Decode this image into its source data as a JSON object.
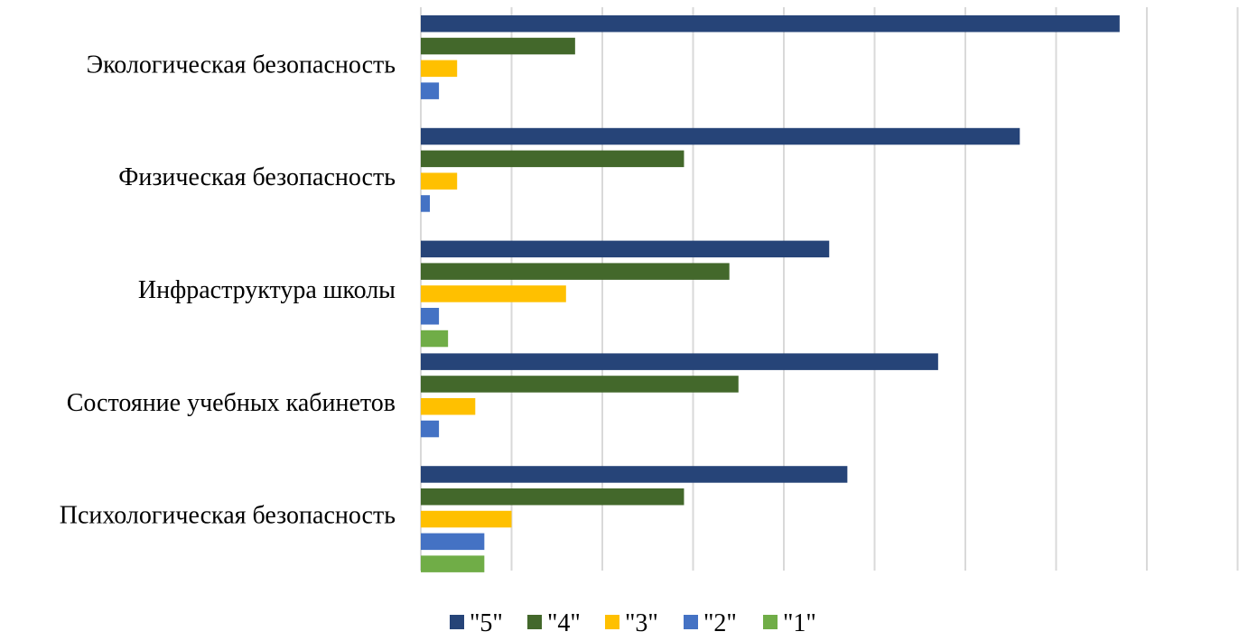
{
  "chart_data": {
    "type": "bar",
    "orientation": "horizontal",
    "categories": [
      "Экологическая безопасность",
      "Физическая безопасность",
      "Инфраструктура школы",
      "Состояние учебных кабинетов",
      "Психологическая безопасность"
    ],
    "series": [
      {
        "name": "\"5\"",
        "color": "#264478",
        "values": [
          77,
          66,
          45,
          57,
          47
        ]
      },
      {
        "name": "\"4\"",
        "color": "#43682b",
        "values": [
          17,
          29,
          34,
          35,
          29
        ]
      },
      {
        "name": "\"3\"",
        "color": "#ffc000",
        "values": [
          4,
          4,
          16,
          6,
          10
        ]
      },
      {
        "name": "\"2\"",
        "color": "#4472c4",
        "values": [
          2,
          1,
          2,
          2,
          7
        ]
      },
      {
        "name": "\"1\"",
        "color": "#70ad47",
        "values": [
          0,
          0,
          3,
          0,
          7
        ]
      }
    ],
    "xlim": [
      0,
      90
    ],
    "grid": true,
    "legend": "bottom",
    "title": "",
    "xlabel": "",
    "ylabel": ""
  }
}
